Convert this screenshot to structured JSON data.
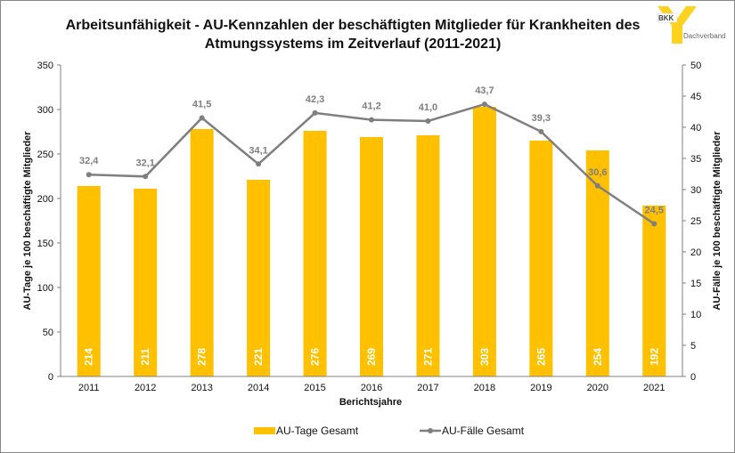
{
  "chart_data": {
    "type": "bar+line",
    "title_line1": "Arbeitsunfähigkeit - AU-Kennzahlen der beschäftigten Mitglieder für Krankheiten des",
    "title_line2": "Atmungssystems im Zeitverlauf (2011-2021)",
    "categories": [
      "2011",
      "2012",
      "2013",
      "2014",
      "2015",
      "2016",
      "2017",
      "2018",
      "2019",
      "2020",
      "2021"
    ],
    "series": [
      {
        "name": "AU-Tage Gesamt",
        "type": "bar",
        "axis": "left",
        "color": "#FFC000",
        "values": [
          214,
          211,
          278,
          221,
          276,
          269,
          271,
          303,
          265,
          254,
          192
        ]
      },
      {
        "name": "AU-Fälle Gesamt",
        "type": "line",
        "axis": "right",
        "color": "#7F7F7F",
        "values": [
          32.4,
          32.1,
          41.5,
          34.1,
          42.3,
          41.2,
          41.0,
          43.7,
          39.3,
          30.6,
          24.5
        ],
        "labels": [
          "32,4",
          "32,1",
          "41,5",
          "34,1",
          "42,3",
          "41,2",
          "41,0",
          "43,7",
          "39,3",
          "30,6",
          "24,5"
        ]
      }
    ],
    "xlabel": "Berichtsjahre",
    "ylabel": "AU-Tage je 100 beschäftigte Mitglieder",
    "y2label": "AU-Fälle je 100 beschäftigte Mitglieder",
    "ylim": [
      0,
      350
    ],
    "yticks": [
      0,
      50,
      100,
      150,
      200,
      250,
      300,
      350
    ],
    "y2lim": [
      0,
      50
    ],
    "y2ticks": [
      0,
      5,
      10,
      15,
      20,
      25,
      30,
      35,
      40,
      45,
      50
    ],
    "legend": "bottom",
    "grid": false
  },
  "logo": {
    "brand": "BKK",
    "sub": "Dachverband"
  }
}
